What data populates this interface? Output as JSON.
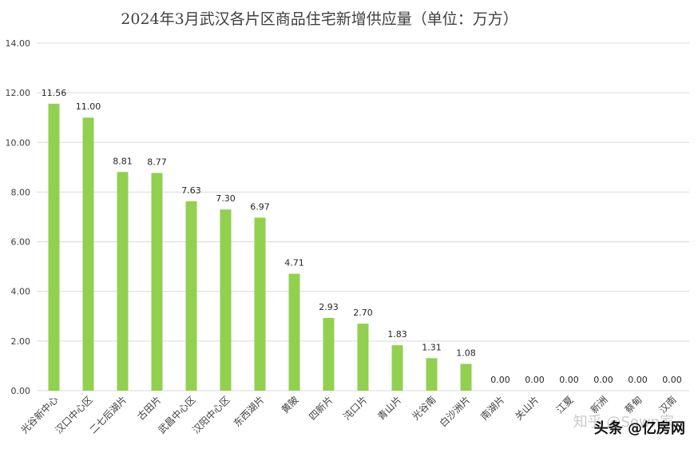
{
  "chart_data": {
    "type": "bar",
    "title": "2024年3月武汉各片区商品住宅新增供应量（单位：万方）",
    "categories": [
      "光谷新中心",
      "汉口中心区",
      "二七后湖片",
      "古田片",
      "武昌中心区",
      "汉阳中心区",
      "东西湖片",
      "黄陂",
      "四新片",
      "沌口片",
      "青山片",
      "光谷南",
      "白沙洲片",
      "南湖片",
      "关山片",
      "江夏",
      "新洲",
      "蔡甸",
      "汉南"
    ],
    "values": [
      11.56,
      11.0,
      8.81,
      8.77,
      7.63,
      7.3,
      6.97,
      4.71,
      2.93,
      2.7,
      1.83,
      1.31,
      1.08,
      0.0,
      0.0,
      0.0,
      0.0,
      0.0,
      0.0
    ],
    "ylim": [
      0,
      14
    ],
    "yticks": [
      "0.00",
      "2.00",
      "4.00",
      "6.00",
      "8.00",
      "10.00",
      "12.00",
      "14.00"
    ],
    "grid": true,
    "bar_color": "#92d050"
  },
  "watermark": {
    "faint": "知乎 @Sown家",
    "main": "头条 @亿房网"
  }
}
